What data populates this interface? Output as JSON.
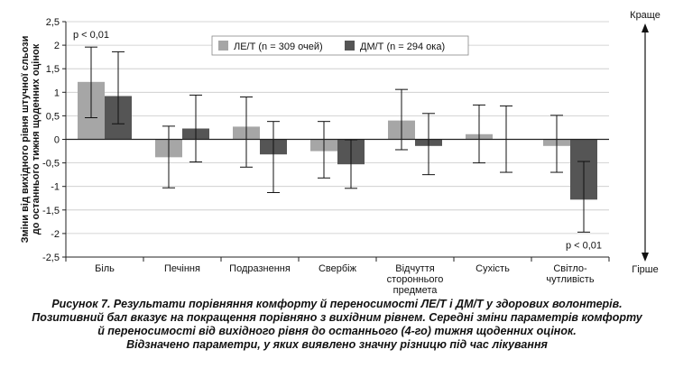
{
  "chart_data": {
    "type": "bar",
    "ylabel": "Зміни від вихідного рівня штучної сльози до останнього тижня щоденних оцінок",
    "ylim": [
      -2.5,
      2.5
    ],
    "ytick_step": 0.5,
    "categories": [
      "Біль",
      "Печіння",
      "Подразнення",
      "Свербіж",
      "Відчуття стороннього предмета",
      "Сухість",
      "Світло-чутливість"
    ],
    "category_lines": [
      [
        "Біль"
      ],
      [
        "Печіння"
      ],
      [
        "Подразнення"
      ],
      [
        "Свербіж"
      ],
      [
        "Відчуття",
        "стороннього",
        "предмета"
      ],
      [
        "Сухість"
      ],
      [
        "Світло-",
        "чутливість"
      ]
    ],
    "series": [
      {
        "name": "ЛЕ/Т (n = 309 очей)",
        "color": "#a6a6a6",
        "values": [
          1.22,
          -0.38,
          0.27,
          -0.25,
          0.4,
          0.11,
          -0.14
        ],
        "err_low": [
          0.46,
          -1.03,
          -0.59,
          -0.82,
          -0.22,
          -0.5,
          -0.7
        ],
        "err_high": [
          1.96,
          0.28,
          0.9,
          0.38,
          1.06,
          0.73,
          0.51
        ]
      },
      {
        "name": "ДМ/Т (n = 294 ока)",
        "color": "#555555",
        "values": [
          0.92,
          0.23,
          -0.32,
          -0.53,
          -0.14,
          0.0,
          -1.28
        ],
        "err_low": [
          0.33,
          -0.48,
          -1.13,
          -1.04,
          -0.75,
          -0.7,
          -1.97
        ],
        "err_high": [
          1.86,
          0.94,
          0.38,
          -0.01,
          0.55,
          0.71,
          -0.47
        ]
      }
    ],
    "annotations": [
      {
        "text": "p < 0,01",
        "category": 0,
        "series": 0
      },
      {
        "text": "p < 0,01",
        "category": 6,
        "series": 1
      }
    ],
    "better_label": "Краще",
    "worse_label": "Гірше",
    "legend_position": "top-center"
  },
  "caption": {
    "lines": [
      "Рисунок 7. Результати порівняння комфорту й переносимості ЛЕ/Т і ДМ/Т у здорових волонтерів.",
      "Позитивний бал вказує на покращення порівняно з вихідним рівнем. Середні зміни параметрів комфорту",
      "й переносимості від вихідного рівня до останнього (4-го) тижня щоденних оцінок.",
      "Відзначено параметри, у яких виявлено значну різницю під час лікування"
    ]
  }
}
